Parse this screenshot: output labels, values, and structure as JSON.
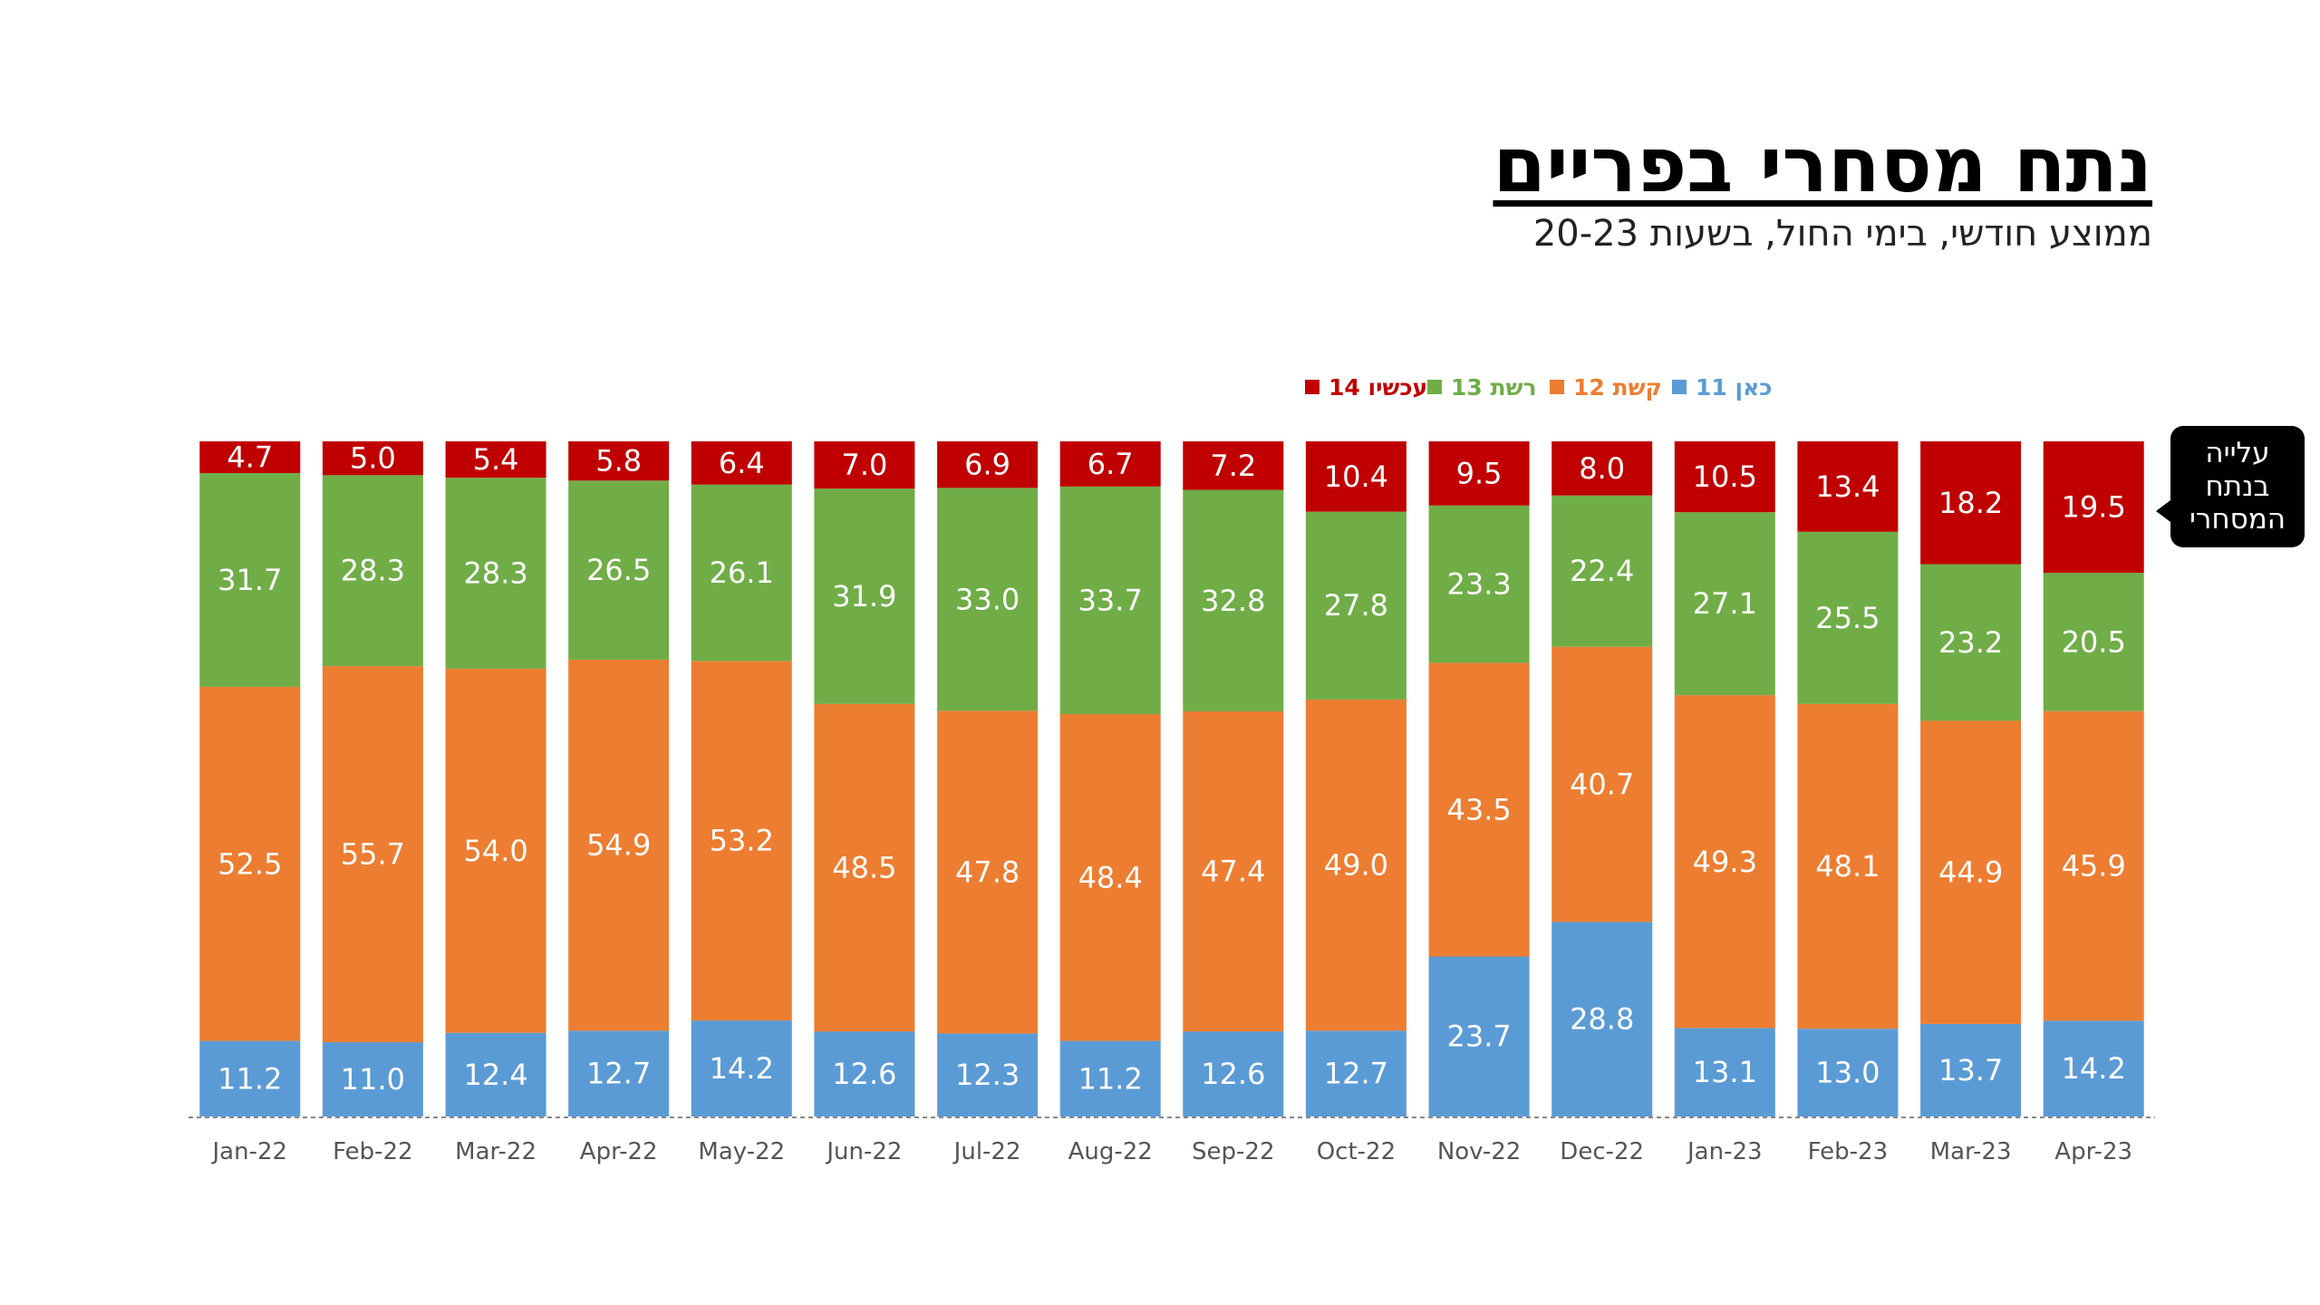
{
  "title": "נתח מסחרי בפריים",
  "subtitle": "ממוצע חודשי, בימי החול, בשעות 20-23",
  "callout": "עלייה\nבנתח\nהמסחרי",
  "chart_data": {
    "type": "bar",
    "stacked": true,
    "normalized": true,
    "categories": [
      "Jan-22",
      "Feb-22",
      "Mar-22",
      "Apr-22",
      "May-22",
      "Jun-22",
      "Jul-22",
      "Aug-22",
      "Sep-22",
      "Oct-22",
      "Nov-22",
      "Dec-22",
      "Jan-23",
      "Feb-23",
      "Mar-23",
      "Apr-23"
    ],
    "legend_position": "top",
    "grid": false,
    "series": [
      {
        "name": "כאן 11",
        "color": "#5b9bd5",
        "values": [
          11.2,
          11.0,
          12.4,
          12.7,
          14.2,
          12.6,
          12.3,
          11.2,
          12.6,
          12.7,
          23.7,
          28.8,
          13.1,
          13.0,
          13.7,
          14.2
        ]
      },
      {
        "name": "קשת 12",
        "color": "#ed7d31",
        "values": [
          52.5,
          55.7,
          54.0,
          54.9,
          53.2,
          48.5,
          47.8,
          48.4,
          47.4,
          49.0,
          43.5,
          40.7,
          49.3,
          48.1,
          44.9,
          45.9
        ]
      },
      {
        "name": "רשת 13",
        "color": "#70ad47",
        "values": [
          31.7,
          28.3,
          28.3,
          26.5,
          26.1,
          31.9,
          33.0,
          33.7,
          32.8,
          27.8,
          23.3,
          22.4,
          27.1,
          25.5,
          23.2,
          20.5
        ]
      },
      {
        "name": "עכשיו 14",
        "color": "#c00000",
        "values": [
          4.7,
          5.0,
          5.4,
          5.8,
          6.4,
          7.0,
          6.9,
          6.7,
          7.2,
          10.4,
          9.5,
          8.0,
          10.5,
          13.4,
          18.2,
          19.5
        ]
      }
    ]
  }
}
